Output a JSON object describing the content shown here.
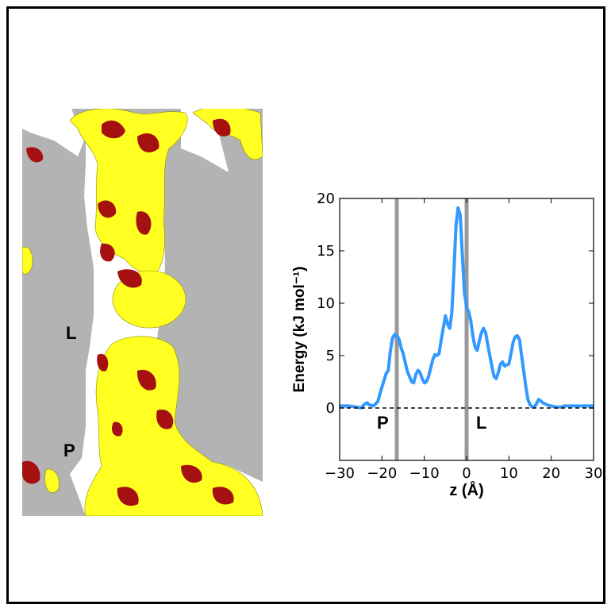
{
  "surface_figure": {
    "label_L": "L",
    "label_P": "P",
    "colors": {
      "background": "#b3b3b3",
      "hydrophobic": "#ffff22",
      "polar": "#a51010"
    }
  },
  "chart_data": {
    "type": "line",
    "xlabel": "z (Å)",
    "ylabel": "Energy (kJ mol⁻¹)",
    "xlim": [
      -30,
      30
    ],
    "ylim": [
      -5,
      20
    ],
    "xticks": [
      -30,
      -20,
      -10,
      0,
      10,
      20,
      30
    ],
    "xtick_labels": [
      "−30",
      "−20",
      "−10",
      "0",
      "10",
      "20",
      "30"
    ],
    "yticks": [
      0,
      5,
      10,
      15,
      20
    ],
    "ytick_labels": [
      "0",
      "5",
      "10",
      "15",
      "20"
    ],
    "grid": false,
    "series": [
      {
        "color": "#3399ff",
        "x": [
          -30,
          -28,
          -26,
          -25,
          -24,
          -23.5,
          -23,
          -22,
          -21,
          -20,
          -19,
          -18.5,
          -18,
          -17.5,
          -17,
          -16.5,
          -16,
          -15.5,
          -15,
          -14,
          -13,
          -12.5,
          -12,
          -11.5,
          -11,
          -10.5,
          -10,
          -9.5,
          -9,
          -8.5,
          -8,
          -7.5,
          -7,
          -6.5,
          -6,
          -5,
          -4.5,
          -4,
          -3.5,
          -3,
          -2.5,
          -2,
          -1.5,
          -1,
          -0.5,
          0,
          0.5,
          1,
          1.5,
          2,
          2.5,
          3,
          3.5,
          4,
          4.5,
          5,
          5.5,
          6,
          6.5,
          7,
          7.5,
          8,
          8.5,
          9,
          10,
          10.5,
          11,
          11.5,
          12,
          12.5,
          13,
          13.5,
          14,
          14.5,
          15,
          15.5,
          16,
          16.5,
          17,
          17.5,
          18,
          19,
          20,
          21,
          22,
          22.5,
          23,
          24,
          25,
          26,
          27,
          28,
          29,
          30
        ],
        "y": [
          0.2,
          0.2,
          0.1,
          0.0,
          0.4,
          0.5,
          0.3,
          0.2,
          0.6,
          2.0,
          3.3,
          3.6,
          5.5,
          6.7,
          7.0,
          6.9,
          6.6,
          5.8,
          5.2,
          3.5,
          2.5,
          2.4,
          3.2,
          3.6,
          3.4,
          2.8,
          2.4,
          2.5,
          3.0,
          3.8,
          4.6,
          5.1,
          5.0,
          5.2,
          6.5,
          8.8,
          8.0,
          7.6,
          9.0,
          13.0,
          17.5,
          19.1,
          18.4,
          14.5,
          11.0,
          9.6,
          9.2,
          8.3,
          6.8,
          5.8,
          5.5,
          6.4,
          7.2,
          7.6,
          7.2,
          6.0,
          5.0,
          3.9,
          3.0,
          2.8,
          3.4,
          4.2,
          4.4,
          4.0,
          4.2,
          5.2,
          6.3,
          6.8,
          6.9,
          6.5,
          5.0,
          3.5,
          2.0,
          0.8,
          0.3,
          0.1,
          0.1,
          0.4,
          0.8,
          0.7,
          0.5,
          0.3,
          0.2,
          0.1,
          0.1,
          0.1,
          0.2,
          0.2,
          0.2,
          0.2,
          0.2,
          0.2,
          0.2,
          0.2
        ]
      }
    ],
    "vertical_lines": [
      {
        "x": -16.5,
        "label": "P",
        "color": "#999999"
      },
      {
        "x": 0,
        "label": "L",
        "color": "#999999"
      }
    ],
    "reference_line": {
      "y": 0,
      "style": "dashed",
      "color": "#000000"
    }
  }
}
